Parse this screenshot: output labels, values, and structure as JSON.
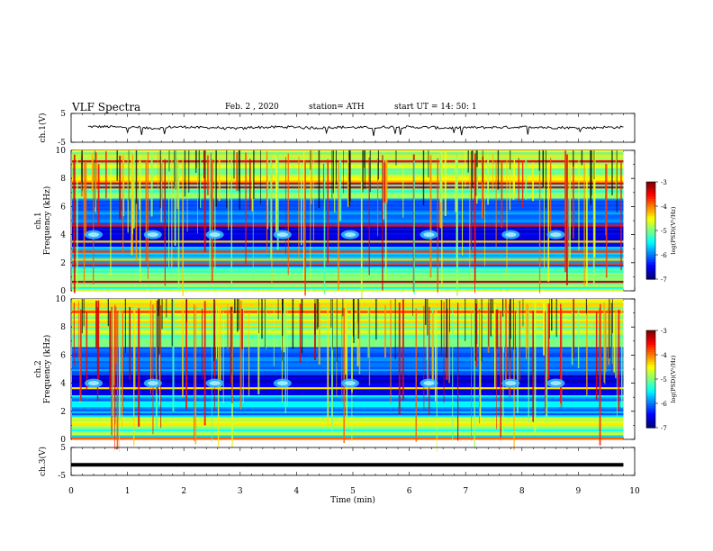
{
  "header": {
    "title": "VLF  Spectra",
    "date": "Feb. 2  , 2020",
    "station": "station= ATH",
    "start": "start  UT  =   14: 50: 1"
  },
  "chart_data": [
    {
      "type": "line",
      "ylabel": "ch.1(V)",
      "ylim": [
        -5,
        5
      ],
      "y_ticks": [
        "5",
        "-5"
      ],
      "series": [
        {
          "values": [
            0.4,
            0.2,
            -0.1,
            0.3,
            0.1,
            -0.2,
            0.2,
            0.3,
            0.0,
            0.2,
            0.1,
            0.3,
            0.2,
            0.0,
            0.1,
            0.2,
            0.3,
            0.1,
            0.0,
            0.2
          ]
        }
      ],
      "xlim": [
        0,
        10
      ]
    },
    {
      "type": "heatmap",
      "ylabel": "ch.1\nFrequency  (kHz)",
      "ylim": [
        0,
        10
      ],
      "y_ticks": [
        "10",
        "8",
        "6",
        "4",
        "2",
        "0"
      ],
      "xlim": [
        0,
        10
      ],
      "data_end_min": 9.8,
      "bursts_min": [
        0.4,
        1.45,
        2.55,
        3.75,
        4.95,
        6.35,
        7.8,
        8.6
      ],
      "burst_freq_khz": 4.0,
      "colorbar": {
        "label": "log(PSD)(V²/Hz)",
        "ticks": [
          "-3",
          "-4",
          "-5",
          "-6",
          "-7"
        ],
        "range": [
          -7,
          -3
        ]
      }
    },
    {
      "type": "heatmap",
      "ylabel": "ch.2\nFrequency  (kHz)",
      "ylim": [
        0,
        10
      ],
      "y_ticks": [
        "10",
        "8",
        "6",
        "4",
        "2",
        "0"
      ],
      "xlim": [
        0,
        10
      ],
      "data_end_min": 9.8,
      "bursts_min": [
        0.4,
        1.45,
        2.55,
        3.75,
        4.95,
        6.35,
        7.8,
        8.6
      ],
      "burst_freq_khz": 4.0,
      "colorbar": {
        "label": "log(PSD)(V²/Hz)",
        "ticks": [
          "-3",
          "-4",
          "-5",
          "-6",
          "-7"
        ],
        "range": [
          -7,
          -3
        ]
      }
    },
    {
      "type": "line",
      "ylabel": "ch.3(V)",
      "ylim": [
        -5,
        5
      ],
      "y_ticks": [
        "5",
        "-5"
      ],
      "series": [
        {
          "values": [
            -1.2,
            -1.2,
            -1.2,
            -1.2,
            -1.2,
            -1.2,
            -1.2,
            -1.2,
            -1.2,
            -1.2,
            -1.2,
            -1.2
          ]
        }
      ],
      "xlim": [
        0,
        10
      ],
      "xlabel": "Time  (min)",
      "x_ticks": [
        "0",
        "1",
        "2",
        "3",
        "4",
        "5",
        "6",
        "7",
        "8",
        "9",
        "10"
      ]
    }
  ]
}
